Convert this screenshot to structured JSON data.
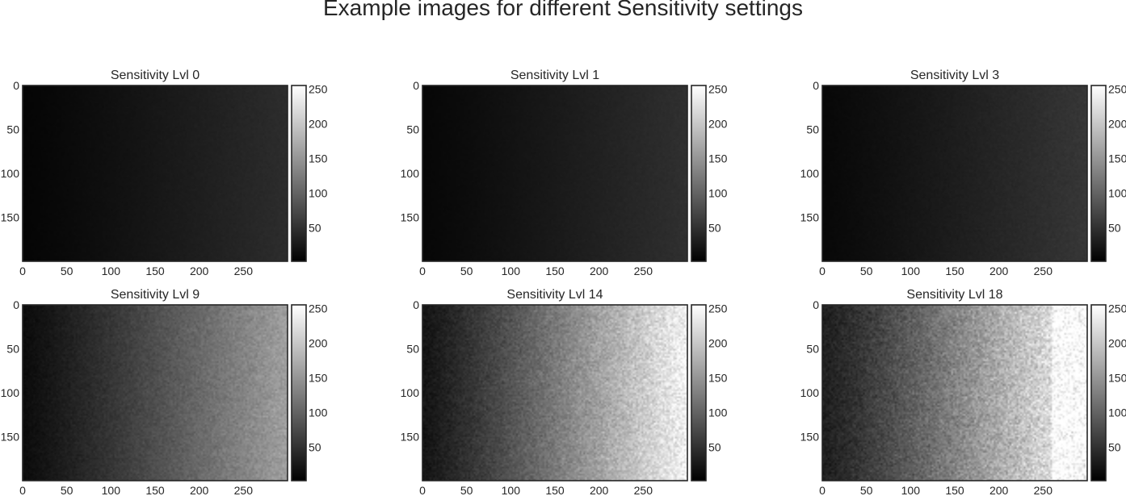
{
  "figure": {
    "title": "Example images for different Sensitivity settings"
  },
  "chart_data": [
    {
      "type": "heatmap",
      "title": "Sensitivity Lvl 0",
      "image_width": 300,
      "image_height": 200,
      "x_ticks": [
        0,
        50,
        100,
        150,
        200,
        250
      ],
      "y_ticks": [
        0,
        50,
        100,
        150
      ],
      "xlim": [
        0,
        300
      ],
      "ylim": [
        200,
        0
      ],
      "colormap": "gray",
      "colorbar": {
        "range": [
          2,
          255
        ],
        "ticks": [
          50,
          100,
          150,
          200,
          250
        ]
      },
      "intensity_left": 5,
      "intensity_right": 45,
      "noise": 2
    },
    {
      "type": "heatmap",
      "title": "Sensitivity Lvl 1",
      "image_width": 300,
      "image_height": 200,
      "x_ticks": [
        0,
        50,
        100,
        150,
        200,
        250
      ],
      "y_ticks": [
        0,
        50,
        100,
        150
      ],
      "xlim": [
        0,
        300
      ],
      "ylim": [
        200,
        0
      ],
      "colormap": "gray",
      "colorbar": {
        "range": [
          2,
          255
        ],
        "ticks": [
          50,
          100,
          150,
          200,
          250
        ]
      },
      "intensity_left": 7,
      "intensity_right": 48,
      "noise": 2
    },
    {
      "type": "heatmap",
      "title": "Sensitivity Lvl 3",
      "image_width": 300,
      "image_height": 200,
      "x_ticks": [
        0,
        50,
        100,
        150,
        200,
        250
      ],
      "y_ticks": [
        0,
        50,
        100,
        150
      ],
      "xlim": [
        0,
        300
      ],
      "ylim": [
        200,
        0
      ],
      "colormap": "gray",
      "colorbar": {
        "range": [
          2,
          255
        ],
        "ticks": [
          50,
          100,
          150,
          200,
          250
        ]
      },
      "intensity_left": 8,
      "intensity_right": 55,
      "noise": 3
    },
    {
      "type": "heatmap",
      "title": "Sensitivity Lvl 9",
      "image_width": 300,
      "image_height": 200,
      "x_ticks": [
        0,
        50,
        100,
        150,
        200,
        250
      ],
      "y_ticks": [
        0,
        50,
        100,
        150
      ],
      "xlim": [
        0,
        300
      ],
      "ylim": [
        200,
        0
      ],
      "colormap": "gray",
      "colorbar": {
        "range": [
          2,
          255
        ],
        "ticks": [
          50,
          100,
          150,
          200,
          250
        ]
      },
      "intensity_left": 12,
      "intensity_right": 160,
      "noise": 12
    },
    {
      "type": "heatmap",
      "title": "Sensitivity Lvl 14",
      "image_width": 300,
      "image_height": 200,
      "x_ticks": [
        0,
        50,
        100,
        150,
        200,
        250
      ],
      "y_ticks": [
        0,
        50,
        100,
        150
      ],
      "xlim": [
        0,
        300
      ],
      "ylim": [
        200,
        0
      ],
      "colormap": "gray",
      "colorbar": {
        "range": [
          2,
          255
        ],
        "ticks": [
          50,
          100,
          150,
          200,
          250
        ]
      },
      "intensity_left": 20,
      "intensity_right": 245,
      "noise": 22
    },
    {
      "type": "heatmap",
      "title": "Sensitivity Lvl 18",
      "image_width": 300,
      "image_height": 200,
      "x_ticks": [
        0,
        50,
        100,
        150,
        200,
        250
      ],
      "y_ticks": [
        0,
        50,
        100,
        150
      ],
      "xlim": [
        0,
        300
      ],
      "ylim": [
        200,
        0
      ],
      "colormap": "gray",
      "colorbar": {
        "range": [
          2,
          255
        ],
        "ticks": [
          50,
          100,
          150,
          200,
          250
        ]
      },
      "intensity_left": 30,
      "intensity_right": 255,
      "saturate_from_x": 260,
      "noise": 30
    }
  ]
}
